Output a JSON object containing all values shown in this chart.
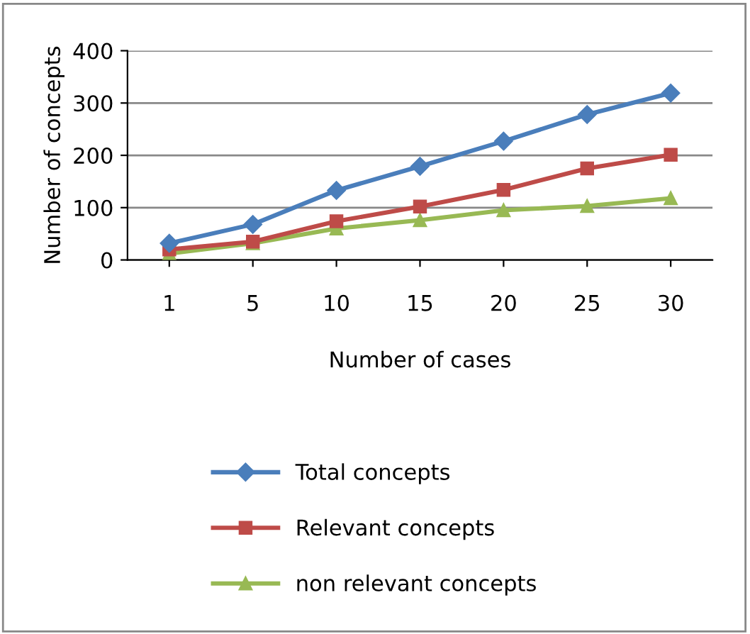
{
  "chart_data": {
    "type": "line",
    "xlabel": "Number of cases",
    "ylabel": "Number of concepts",
    "categories": [
      "1",
      "5",
      "10",
      "15",
      "20",
      "25",
      "30"
    ],
    "series": [
      {
        "name": "Total concepts",
        "color": "#4a7ebb",
        "marker": "diamond",
        "values": [
          32,
          68,
          133,
          179,
          227,
          278,
          319
        ]
      },
      {
        "name": "Relevant concepts",
        "color": "#be4b48",
        "marker": "square",
        "values": [
          20,
          35,
          74,
          102,
          134,
          175,
          201
        ]
      },
      {
        "name": "non relevant concepts",
        "color": "#98b954",
        "marker": "triangle",
        "values": [
          12,
          32,
          60,
          76,
          95,
          103,
          118
        ]
      }
    ],
    "ylim": [
      0,
      400
    ],
    "yticks": [
      0,
      100,
      200,
      300,
      400
    ],
    "grid": "y",
    "legend": "bottom"
  }
}
